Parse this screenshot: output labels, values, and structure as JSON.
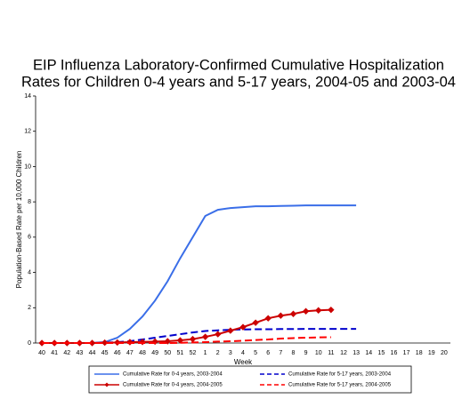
{
  "chart_data": {
    "type": "line",
    "title": [
      "EIP Influenza Laboratory-Confirmed Cumulative Hospitalization",
      "Rates for Children 0-4 years and 5-17 years, 2004-05 and 2003-04"
    ],
    "y_label": "Population-Based Rate per 10,000 Children",
    "x_label": "Week",
    "categories": [
      "40",
      "41",
      "42",
      "43",
      "44",
      "45",
      "46",
      "47",
      "48",
      "49",
      "50",
      "51",
      "52",
      "1",
      "2",
      "3",
      "4",
      "5",
      "6",
      "7",
      "8",
      "9",
      "10",
      "11",
      "12",
      "13",
      "14",
      "15",
      "16",
      "17",
      "18",
      "19",
      "20"
    ],
    "ylim": [
      0,
      14
    ],
    "yticks": [
      0,
      2,
      4,
      6,
      8,
      10,
      12,
      14
    ],
    "series": [
      {
        "name": "Cumulative Rate for 0-4 years, 2003-2004",
        "color": "#3a6ee8",
        "dash": false,
        "marker": "none",
        "values": [
          0,
          0,
          0,
          0,
          0,
          0.05,
          0.3,
          0.8,
          1.5,
          2.4,
          3.5,
          4.8,
          6.0,
          7.2,
          7.55,
          7.65,
          7.7,
          7.75,
          7.75,
          7.77,
          7.78,
          7.8,
          7.8,
          7.8,
          7.8,
          7.8,
          null,
          null,
          null,
          null,
          null,
          null,
          null
        ]
      },
      {
        "name": "Cumulative Rate for 5-17 years, 2003-2004",
        "color": "#0000cc",
        "dash": true,
        "marker": "none",
        "values": [
          0,
          0,
          0,
          0,
          0,
          0.02,
          0.05,
          0.1,
          0.2,
          0.3,
          0.4,
          0.5,
          0.6,
          0.68,
          0.72,
          0.75,
          0.77,
          0.78,
          0.78,
          0.79,
          0.79,
          0.8,
          0.8,
          0.8,
          0.8,
          0.8,
          null,
          null,
          null,
          null,
          null,
          null,
          null
        ]
      },
      {
        "name": "Cumulative Rate for 0-4 years, 2004-2005",
        "color": "#cc0000",
        "dash": false,
        "marker": "diamond",
        "values": [
          0,
          0,
          0,
          0,
          0,
          0.02,
          0.03,
          0.05,
          0.06,
          0.08,
          0.1,
          0.15,
          0.22,
          0.35,
          0.5,
          0.7,
          0.9,
          1.15,
          1.4,
          1.55,
          1.65,
          1.8,
          1.85,
          1.88,
          null,
          null,
          null,
          null,
          null,
          null,
          null,
          null,
          null
        ]
      },
      {
        "name": "Cumulative Rate for 5-17 years, 2004-2005",
        "color": "#ff0000",
        "dash": true,
        "marker": "none",
        "values": [
          0,
          0,
          0,
          0,
          0,
          0,
          0,
          0,
          0,
          0,
          0,
          0.01,
          0.03,
          0.05,
          0.08,
          0.1,
          0.13,
          0.17,
          0.2,
          0.25,
          0.28,
          0.3,
          0.32,
          0.33,
          null,
          null,
          null,
          null,
          null,
          null,
          null,
          null,
          null
        ]
      }
    ]
  }
}
